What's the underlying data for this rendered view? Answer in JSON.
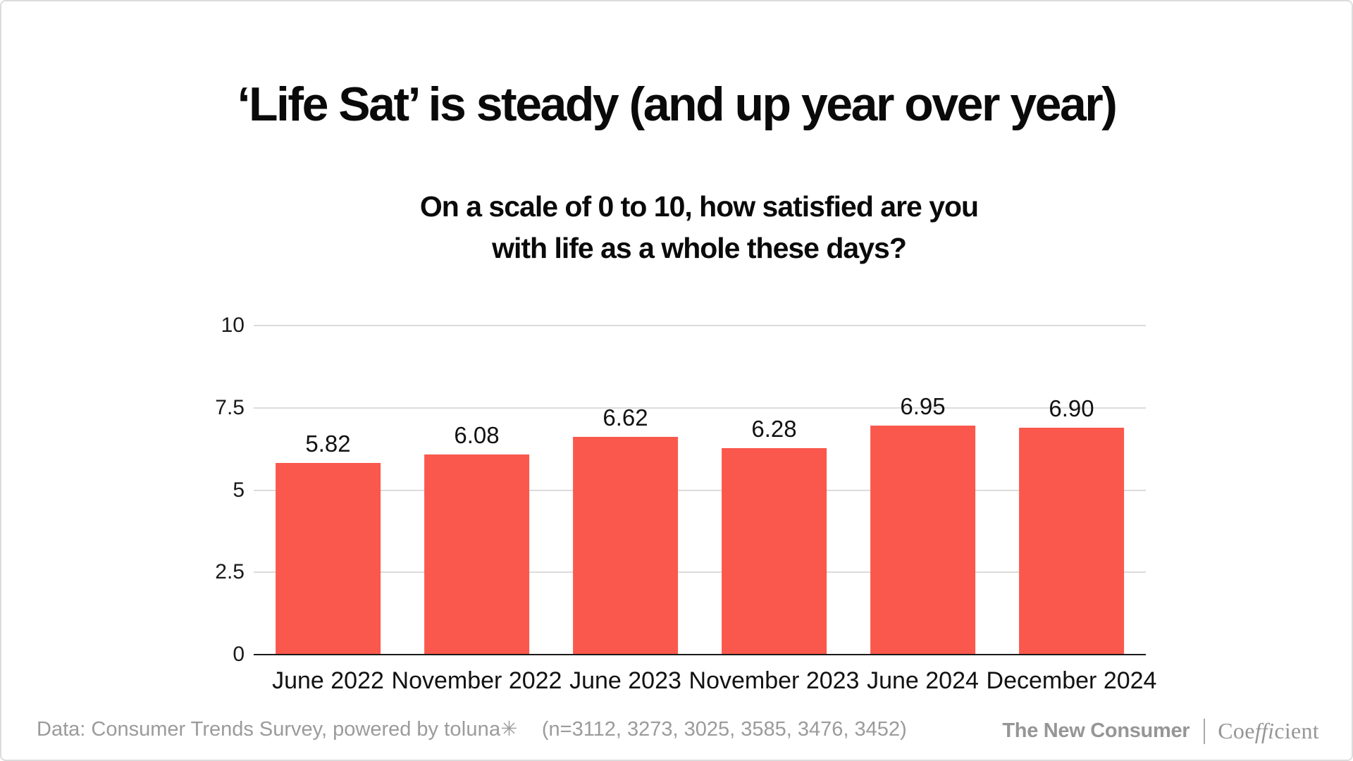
{
  "title": "‘Life Sat’ is steady (and up year over year)",
  "subtitle_lines": [
    "On a scale of 0 to 10, how satisfied are you",
    "with life as a whole these days?"
  ],
  "chart_data": {
    "type": "bar",
    "categories": [
      "June 2022",
      "November 2022",
      "June 2023",
      "November 2023",
      "June 2024",
      "December 2024"
    ],
    "values": [
      5.82,
      6.08,
      6.62,
      6.28,
      6.95,
      6.9
    ],
    "value_labels": [
      "5.82",
      "6.08",
      "6.62",
      "6.28",
      "6.95",
      "6.90"
    ],
    "title": "‘Life Sat’ is steady (and up year over year)",
    "subtitle": "On a scale of 0 to 10, how satisfied are you with life as a whole these days?",
    "xlabel": "",
    "ylabel": "",
    "ylim": [
      0,
      10
    ],
    "yticks": [
      0,
      2.5,
      5,
      7.5,
      10
    ],
    "ytick_labels": [
      "0",
      "2.5",
      "5",
      "7.5",
      "10"
    ],
    "grid": "horizontal gridlines at each y tick",
    "legend": "none",
    "bar_color": "#FA584C",
    "grid_color": "#DCDCDC",
    "axis_color": "#1A1A1A"
  },
  "footer": {
    "source_prefix": "Data: Consumer Trends Survey, powered by ",
    "source_brand": "toluna✳",
    "sample": "(n=3112, 3273, 3025, 3585, 3476, 3452)",
    "text_color": "#9B9B9B"
  },
  "branding": {
    "left": "The New Consumer",
    "coefficient": {
      "pre": "Coe",
      "lig": "ffi",
      "post": "cient"
    },
    "color": "#969696"
  }
}
